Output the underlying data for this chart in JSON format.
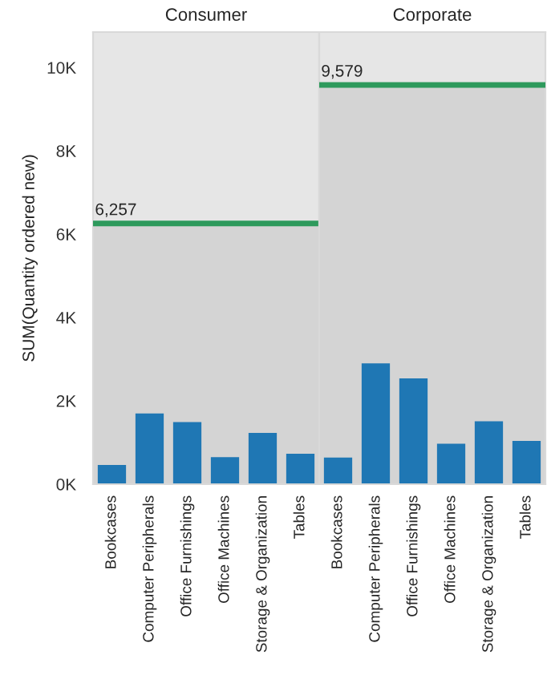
{
  "chart_data": [
    {
      "type": "bar",
      "title": "Consumer",
      "ylabel": "SUM(Quantity ordered new)",
      "categories": [
        "Bookcases",
        "Computer Peripherals",
        "Office Furnishings",
        "Office Machines",
        "Storage & Organization",
        "Tables"
      ],
      "values": [
        460,
        1700,
        1490,
        650,
        1230,
        730
      ],
      "color": "#1f77b4",
      "ylim": [
        0,
        10850
      ],
      "yticks": [
        {
          "value": 0,
          "label": "0K"
        },
        {
          "value": 2000,
          "label": "2K"
        },
        {
          "value": 4000,
          "label": "4K"
        },
        {
          "value": 6000,
          "label": "6K"
        },
        {
          "value": 8000,
          "label": "8K"
        },
        {
          "value": 10000,
          "label": "10K"
        }
      ],
      "ref_lines": [
        {
          "axis": "y",
          "value": 6257,
          "label": "6,257",
          "color": "#2e9a5c"
        }
      ],
      "bands": [
        {
          "axis": "y",
          "from": 0,
          "to": 6257,
          "color": "#d4d4d4"
        }
      ],
      "grid": false
    },
    {
      "type": "bar",
      "title": "Corporate",
      "categories": [
        "Bookcases",
        "Computer Peripherals",
        "Office Furnishings",
        "Office Machines",
        "Storage & Organization",
        "Tables"
      ],
      "values": [
        640,
        2900,
        2540,
        970,
        1510,
        1040
      ],
      "color": "#1f77b4",
      "ylim": [
        0,
        10850
      ],
      "ref_lines": [
        {
          "axis": "y",
          "value": 9579,
          "label": "9,579",
          "color": "#2e9a5c"
        }
      ],
      "bands": [
        {
          "axis": "y",
          "from": 0,
          "to": 9579,
          "color": "#d4d4d4"
        }
      ],
      "grid": false,
      "tick_labels": "x"
    }
  ]
}
